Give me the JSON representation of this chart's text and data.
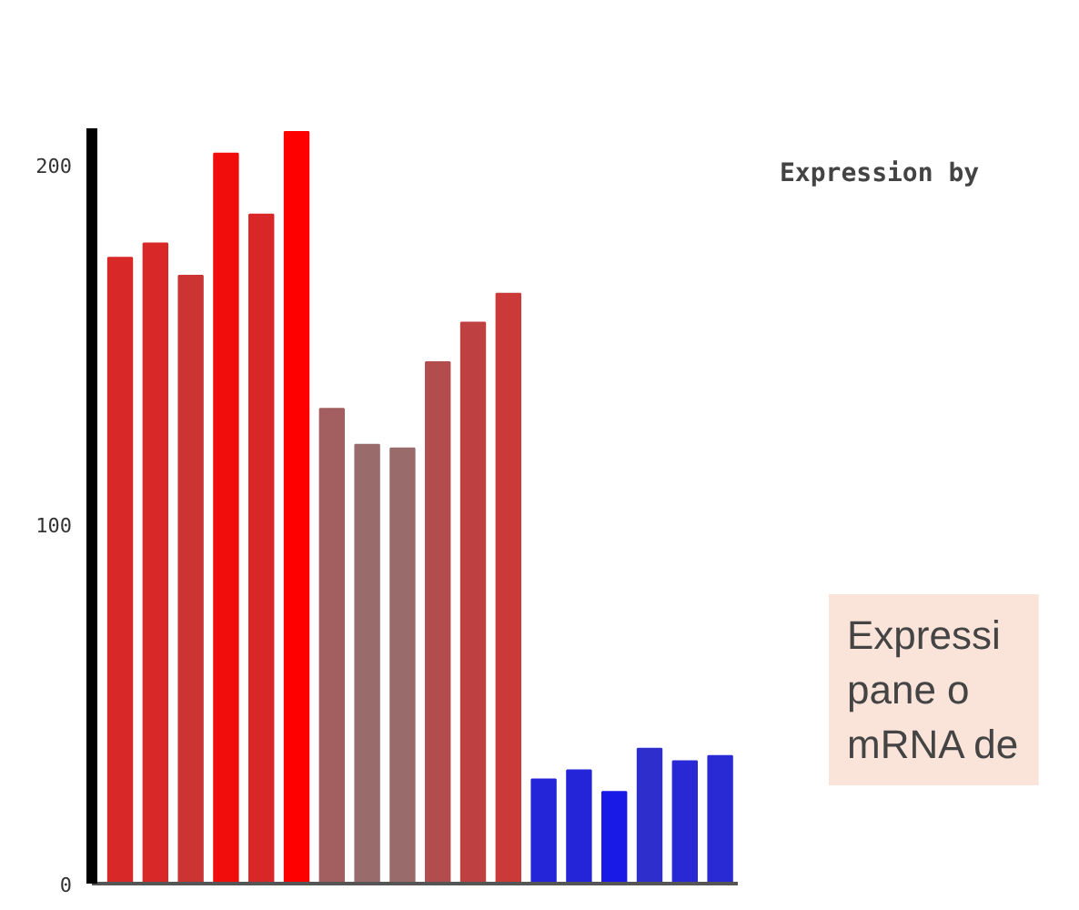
{
  "chart_data": {
    "type": "bar",
    "title": "Expression by",
    "categories": [
      null,
      null,
      null,
      null,
      null,
      null,
      null,
      null,
      null,
      null,
      null,
      null,
      null,
      null,
      null,
      null,
      null,
      null
    ],
    "values": [
      174,
      178,
      169,
      203,
      186,
      209,
      132,
      122,
      121,
      145,
      156,
      164,
      29,
      31.5,
      25.5,
      37.5,
      34,
      35.5
    ],
    "colors": [
      "#d92828",
      "#d92828",
      "#cc3333",
      "#f20d0d",
      "#d92626",
      "#ff0000",
      "#a35f5f",
      "#996b6b",
      "#996b6b",
      "#b34d4d",
      "#bf4040",
      "#cc3939",
      "#2424d9",
      "#2424d9",
      "#1a1ae6",
      "#2e2ecc",
      "#2828d4",
      "#2a2ad5"
    ],
    "ylim": [
      0,
      210
    ],
    "yticks": [
      0,
      100,
      200
    ],
    "tick_labels": "y",
    "grid": false,
    "annotations": [
      "Expressi\npane o\nmRNA de"
    ]
  }
}
